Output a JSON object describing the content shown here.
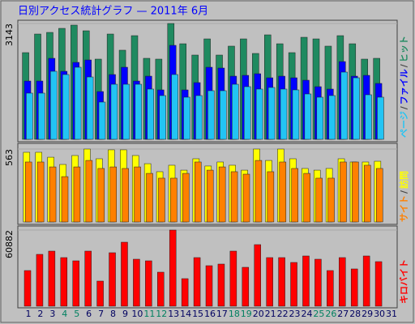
{
  "chart_data": [
    {
      "type": "bar",
      "title": "日別アクセス統計グラフ — 2011年 6月",
      "legend_separator": "/",
      "ylim": [
        0,
        3143
      ],
      "yticks": [
        3143
      ],
      "series": [
        {
          "name": "ヒット",
          "color": "#1f8a60",
          "values": [
            2352,
            2857,
            2901,
            3011,
            3099,
            2945,
            2176,
            2857,
            2418,
            2813,
            2198,
            2176,
            3143,
            2593,
            2286,
            2725,
            2286,
            2528,
            2725,
            2330,
            2835,
            2593,
            2352,
            2769,
            2725,
            2528,
            2813,
            2593,
            2176,
            2198,
            null
          ]
        },
        {
          "name": "ファイル",
          "color": "#0000ff",
          "values": [
            1582,
            1582,
            2198,
            1846,
            2088,
            2154,
            1297,
            1758,
            1956,
            1582,
            1714,
            1341,
            2550,
            1341,
            1539,
            1956,
            1934,
            1714,
            1736,
            1780,
            1670,
            1714,
            1670,
            1604,
            1429,
            1363,
            2110,
            1714,
            1736,
            1517,
            null
          ]
        },
        {
          "name": "ページ",
          "color": "#22c4f4",
          "values": [
            1253,
            1253,
            1846,
            1758,
            1956,
            1692,
            1011,
            1494,
            1494,
            1494,
            1363,
            1187,
            1758,
            1143,
            1187,
            1319,
            1319,
            1494,
            1429,
            1363,
            1407,
            1363,
            1341,
            1231,
            1143,
            1187,
            1824,
            1670,
            1209,
            1143,
            null
          ]
        }
      ]
    },
    {
      "type": "bar",
      "ylim": [
        0,
        563
      ],
      "yticks": [
        563
      ],
      "series": [
        {
          "name": "訪問",
          "color": "#ffff00",
          "values": [
            538,
            538,
            500,
            444,
            513,
            563,
            488,
            557,
            557,
            513,
            450,
            388,
            438,
            400,
            488,
            432,
            463,
            438,
            400,
            563,
            475,
            563,
            488,
            413,
            400,
            413,
            488,
            463,
            463,
            469,
            null
          ]
        },
        {
          "name": "サイト",
          "color": "#ff8000",
          "values": [
            463,
            463,
            425,
            350,
            425,
            475,
            413,
            425,
            413,
            425,
            375,
            338,
            338,
            375,
            463,
            400,
            425,
            388,
            369,
            475,
            388,
            463,
            413,
            375,
            338,
            338,
            463,
            463,
            438,
            413,
            null
          ]
        }
      ]
    },
    {
      "type": "bar",
      "ylim": [
        0,
        60882
      ],
      "yticks": [
        60882
      ],
      "categories": [
        "1",
        "2",
        "3",
        "4",
        "5",
        "6",
        "7",
        "8",
        "9",
        "10",
        "11",
        "12",
        "13",
        "14",
        "15",
        "16",
        "17",
        "18",
        "19",
        "20",
        "21",
        "22",
        "23",
        "24",
        "25",
        "26",
        "27",
        "28",
        "29",
        "30",
        "31"
      ],
      "category_colors": [
        "#000060",
        "#000060",
        "#000060",
        "#008060",
        "#008060",
        "#000060",
        "#000060",
        "#000060",
        "#000060",
        "#000060",
        "#008060",
        "#008060",
        "#000060",
        "#000060",
        "#000060",
        "#000060",
        "#000060",
        "#008060",
        "#008060",
        "#000060",
        "#000060",
        "#000060",
        "#000060",
        "#000060",
        "#008060",
        "#008060",
        "#000060",
        "#000060",
        "#000060",
        "#000060",
        "#000060"
      ],
      "series": [
        {
          "name": "キロバイト",
          "color": "#ff0000",
          "values": [
            28499,
            41453,
            44044,
            38862,
            36271,
            44044,
            20079,
            42748,
            51168,
            37567,
            36271,
            27203,
            60882,
            22022,
            38862,
            32385,
            33680,
            44044,
            31090,
            49225,
            38862,
            38862,
            34976,
            40157,
            37567,
            28499,
            38862,
            29794,
            40157,
            35624,
            null
          ]
        }
      ]
    }
  ]
}
